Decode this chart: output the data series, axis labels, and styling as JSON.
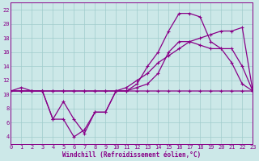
{
  "background_color": "#cce8e8",
  "grid_color": "#a0cccc",
  "line_color": "#880088",
  "xlabel": "Windchill (Refroidissement éolien,°C)",
  "xlim": [
    0,
    23
  ],
  "ylim": [
    3,
    23
  ],
  "yticks": [
    4,
    6,
    8,
    10,
    12,
    14,
    16,
    18,
    20,
    22
  ],
  "xticks": [
    0,
    1,
    2,
    3,
    4,
    5,
    6,
    7,
    8,
    9,
    10,
    11,
    12,
    13,
    14,
    15,
    16,
    17,
    18,
    19,
    20,
    21,
    22,
    23
  ],
  "line1_x": [
    0,
    1,
    2,
    3,
    4,
    5,
    6,
    7,
    8,
    9,
    10,
    11,
    12,
    13,
    14,
    15,
    16,
    17,
    18,
    19,
    20,
    21,
    22,
    23
  ],
  "line1_y": [
    10.5,
    11.0,
    10.5,
    10.5,
    10.5,
    10.5,
    10.5,
    10.5,
    10.5,
    10.5,
    10.5,
    10.5,
    11.0,
    11.5,
    13.0,
    16.0,
    17.5,
    17.5,
    17.0,
    16.5,
    16.5,
    16.5,
    14.0,
    10.5
  ],
  "line2_x": [
    0,
    1,
    2,
    3,
    4,
    5,
    6,
    7,
    8,
    9,
    10,
    11,
    12,
    13,
    14,
    15,
    16,
    17,
    18,
    19,
    20,
    21,
    22,
    23
  ],
  "line2_y": [
    10.5,
    10.5,
    10.5,
    10.5,
    6.5,
    6.5,
    4.0,
    5.0,
    7.5,
    7.5,
    10.5,
    10.5,
    11.5,
    14.0,
    16.0,
    19.0,
    21.5,
    21.5,
    21.0,
    17.5,
    16.5,
    14.5,
    11.5,
    10.5
  ],
  "line3_x": [
    0,
    1,
    2,
    3,
    4,
    5,
    6,
    7,
    8,
    9,
    10,
    11,
    12,
    13,
    14,
    15,
    16,
    17,
    18,
    19,
    20,
    21,
    22,
    23
  ],
  "line3_y": [
    10.5,
    10.5,
    10.5,
    10.5,
    10.5,
    10.5,
    10.5,
    10.5,
    10.5,
    10.5,
    10.5,
    11.0,
    12.0,
    13.0,
    14.5,
    15.5,
    16.5,
    17.5,
    18.0,
    18.5,
    19.0,
    19.0,
    19.5,
    10.5
  ],
  "line4_x": [
    0,
    1,
    2,
    3,
    4,
    5,
    6,
    7,
    8,
    9,
    10,
    11,
    12,
    13,
    14,
    15,
    16,
    17,
    18,
    19,
    20,
    21,
    22,
    23
  ],
  "line4_y": [
    10.5,
    10.5,
    10.5,
    10.5,
    6.5,
    9.0,
    6.5,
    4.5,
    7.5,
    7.5,
    10.5,
    10.5,
    10.5,
    10.5,
    10.5,
    10.5,
    10.5,
    10.5,
    10.5,
    10.5,
    10.5,
    10.5,
    10.5,
    10.5
  ]
}
